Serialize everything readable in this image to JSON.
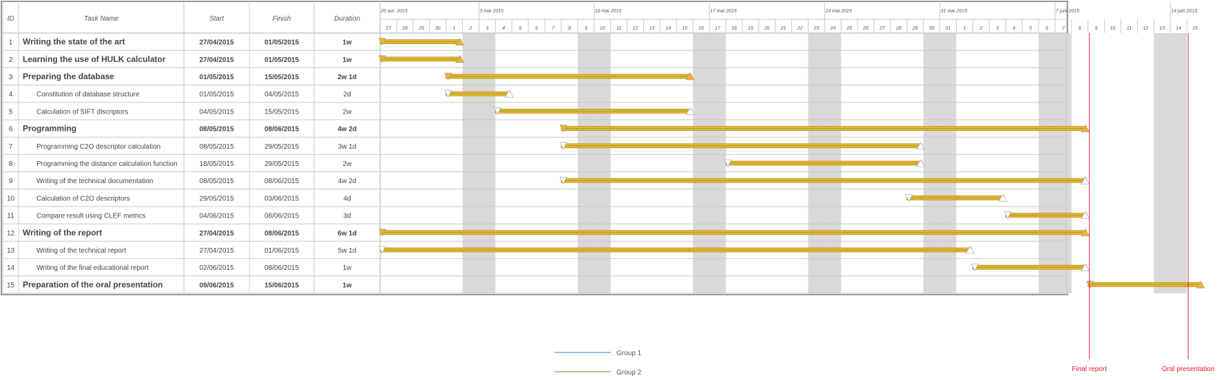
{
  "table": {
    "headers": {
      "id": "ID",
      "name": "Task Name",
      "start": "Start",
      "finish": "Finish",
      "duration": "Duration"
    }
  },
  "timeline": {
    "first_day": "2015-04-27",
    "day_count": 50,
    "week_labels": [
      "26 avr. 2015",
      "3 mai 2015",
      "10 mai 2015",
      "17 mai 2015",
      "24 mai 2015",
      "31 mai 2015",
      "7 juin 2015",
      "14 juin 2015"
    ],
    "day_labels": [
      "27",
      "28",
      "29",
      "30",
      "1",
      "2",
      "3",
      "4",
      "5",
      "6",
      "7",
      "8",
      "9",
      "10",
      "11",
      "12",
      "13",
      "14",
      "15",
      "16",
      "17",
      "18",
      "19",
      "20",
      "21",
      "22",
      "23",
      "24",
      "25",
      "26",
      "27",
      "28",
      "29",
      "30",
      "31",
      "1",
      "2",
      "3",
      "4",
      "5",
      "6",
      "7",
      "8",
      "9",
      "10",
      "11",
      "12",
      "13",
      "14",
      "15"
    ]
  },
  "chart_data": {
    "type": "gantt",
    "tasks": [
      {
        "id": "1",
        "name": "Writing the state of the art",
        "start": "27/04/2015",
        "finish": "01/05/2015",
        "duration": "1w",
        "summary": true
      },
      {
        "id": "2",
        "name": "Learning the use of HULK calculator",
        "start": "27/04/2015",
        "finish": "01/05/2015",
        "duration": "1w",
        "summary": true
      },
      {
        "id": "3",
        "name": "Preparing the database",
        "start": "01/05/2015",
        "finish": "15/05/2015",
        "duration": "2w 1d",
        "summary": true
      },
      {
        "id": "4",
        "name": "Constitution of database structure",
        "start": "01/05/2015",
        "finish": "04/05/2015",
        "duration": "2d",
        "summary": false
      },
      {
        "id": "5",
        "name": "Calculation of SIFT discriptors",
        "start": "04/05/2015",
        "finish": "15/05/2015",
        "duration": "2w",
        "summary": false
      },
      {
        "id": "6",
        "name": "Programming",
        "start": "08/05/2015",
        "finish": "08/06/2015",
        "duration": "4w 2d",
        "summary": true
      },
      {
        "id": "7",
        "name": "Programming C2O descriptor calculation",
        "start": "08/05/2015",
        "finish": "29/05/2015",
        "duration": "3w 1d",
        "summary": false
      },
      {
        "id": "8",
        "name": "Programming the distance calculation function",
        "start": "18/05/2015",
        "finish": "29/05/2015",
        "duration": "2w",
        "summary": false
      },
      {
        "id": "9",
        "name": "Writing of the technical documentation",
        "start": "08/05/2015",
        "finish": "08/06/2015",
        "duration": "4w 2d",
        "summary": false
      },
      {
        "id": "10",
        "name": "Calculation of C2O descriptors",
        "start": "29/05/2015",
        "finish": "03/06/2015",
        "duration": "4d",
        "summary": false
      },
      {
        "id": "11",
        "name": "Compare result using CLEF metrics",
        "start": "04/06/2015",
        "finish": "08/06/2015",
        "duration": "3d",
        "summary": false
      },
      {
        "id": "12",
        "name": "Writing of the report",
        "start": "27/04/2015",
        "finish": "08/06/2015",
        "duration": "6w 1d",
        "summary": true
      },
      {
        "id": "13",
        "name": "Writing of the technical report",
        "start": "27/04/2015",
        "finish": "01/06/2015",
        "duration": "5w 1d",
        "summary": false
      },
      {
        "id": "14",
        "name": "Writing of the final educational report",
        "start": "02/06/2015",
        "finish": "08/06/2015",
        "duration": "1w",
        "summary": false
      },
      {
        "id": "15",
        "name": "Preparation of the oral presentation",
        "start": "09/06/2015",
        "finish": "15/06/2015",
        "duration": "1w",
        "summary": true
      }
    ],
    "milestones": [
      {
        "label": "Final report",
        "date": "09/06/2015"
      },
      {
        "label": "Oral presentation",
        "date": "15/06/2015"
      }
    ],
    "legend": [
      {
        "label": "Group 1",
        "color": "#5b9bd5"
      },
      {
        "label": "Group 2",
        "color": "#70ad47"
      }
    ],
    "colors": {
      "bar": "#f0b42c",
      "bar_edge": "#c58a12",
      "weekend": "#d9d9d9",
      "milestone": "#e0202a",
      "grid": "#c8c8c8"
    }
  }
}
